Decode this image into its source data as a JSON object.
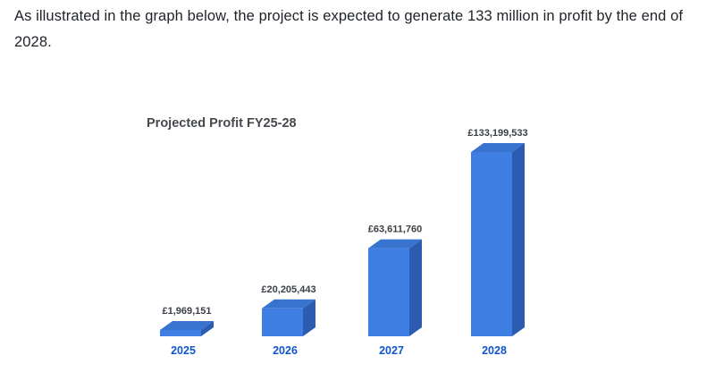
{
  "paragraph": "As illustrated in the graph below, the project is expected to generate 133 million in profit by the end of 2028.",
  "chart_data": {
    "type": "bar",
    "style": "3d",
    "title": "Projected Profit FY25-28",
    "categories": [
      "2025",
      "2026",
      "2027",
      "2028"
    ],
    "values": [
      1969151,
      20205443,
      63611760,
      133199533
    ],
    "value_labels": [
      "£1,969,151",
      "£20,205,443",
      "£63,611,760",
      "£133,199,533"
    ],
    "ylabel": "",
    "xlabel": "",
    "ylim": [
      0,
      140000000
    ],
    "legend": "none",
    "grid": false,
    "colors": {
      "bar_front": "#3f7fe3",
      "bar_top": "#3873cf",
      "bar_side": "#2c5cb0",
      "category_label": "#1155cc",
      "value_label": "#3b3f46",
      "title": "#45494e"
    }
  }
}
